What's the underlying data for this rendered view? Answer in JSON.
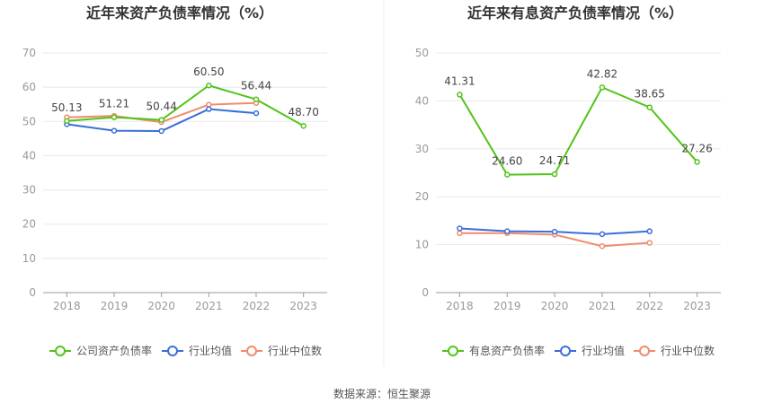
{
  "chart_data": [
    {
      "type": "line",
      "title": "近年来资产负债率情况（%）",
      "categories": [
        "2018",
        "2019",
        "2020",
        "2021",
        "2022",
        "2023"
      ],
      "ylim": [
        0,
        70
      ],
      "yticks": [
        0,
        10,
        20,
        30,
        40,
        50,
        60,
        70
      ],
      "grid": true,
      "legend_position": "bottom",
      "series": [
        {
          "name": "公司资产负债率",
          "color": "#52c41a",
          "values": [
            50.13,
            51.21,
            50.44,
            60.5,
            56.44,
            48.7
          ],
          "labels": [
            "50.13",
            "51.21",
            "50.44",
            "60.50",
            "56.44",
            "48.70"
          ]
        },
        {
          "name": "行业均值",
          "color": "#3a6fd8",
          "values": [
            49.2,
            47.3,
            47.2,
            53.6,
            52.4,
            null
          ]
        },
        {
          "name": "行业中位数",
          "color": "#f08c6c",
          "values": [
            51.2,
            51.6,
            49.8,
            54.9,
            55.4,
            null
          ]
        }
      ]
    },
    {
      "type": "line",
      "title": "近年来有息资产负债率情况（%）",
      "categories": [
        "2018",
        "2019",
        "2020",
        "2021",
        "2022",
        "2023"
      ],
      "ylim": [
        0,
        50
      ],
      "yticks": [
        0,
        10,
        20,
        30,
        40,
        50
      ],
      "grid": true,
      "legend_position": "bottom",
      "series": [
        {
          "name": "有息资产负债率",
          "color": "#52c41a",
          "values": [
            41.31,
            24.6,
            24.71,
            42.82,
            38.65,
            27.26
          ],
          "labels": [
            "41.31",
            "24.60",
            "24.71",
            "42.82",
            "38.65",
            "27.26"
          ]
        },
        {
          "name": "行业均值",
          "color": "#3a6fd8",
          "values": [
            13.4,
            12.8,
            12.7,
            12.2,
            12.8,
            null
          ]
        },
        {
          "name": "行业中位数",
          "color": "#f08c6c",
          "values": [
            12.4,
            12.4,
            12.1,
            9.7,
            10.4,
            null
          ]
        }
      ]
    }
  ],
  "footer": {
    "source": "数据来源：恒生聚源"
  }
}
